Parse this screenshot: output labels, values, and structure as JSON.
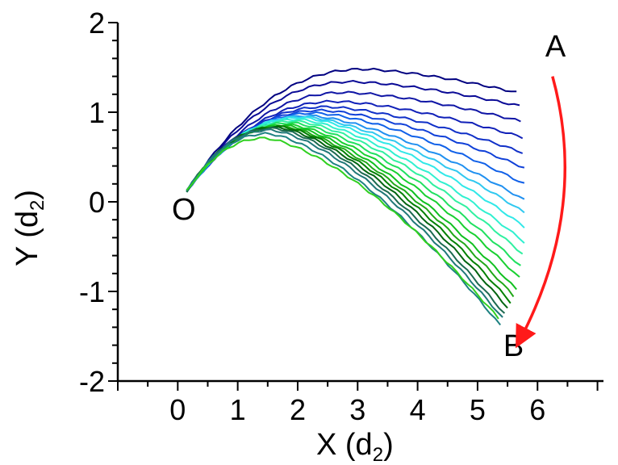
{
  "chart_data": {
    "type": "line",
    "xlabel": "X (d",
    "xlabel_sub": "2",
    "xlabel_close": ")",
    "ylabel": "Y (d",
    "ylabel_sub": "2",
    "ylabel_close": ")",
    "xlim": [
      -1,
      7.1
    ],
    "ylim": [
      -2,
      2
    ],
    "xticks": [
      0,
      1,
      2,
      3,
      4,
      5,
      6
    ],
    "yticks": [
      -2,
      -1,
      0,
      1,
      2
    ],
    "grid": false,
    "legend": "none",
    "origin": [
      0.15,
      0.12
    ],
    "annotations": [
      {
        "text": "O",
        "x": 0.1,
        "y": -0.2
      },
      {
        "text": "A",
        "x": 6.3,
        "y": 1.62
      },
      {
        "text": "B",
        "x": 5.6,
        "y": -1.72
      }
    ],
    "arrow": {
      "from": [
        6.25,
        1.4
      ],
      "to": [
        5.7,
        -1.55
      ],
      "color": "#ff1a1a"
    },
    "series": [
      {
        "color": "#000080",
        "end": [
          5.65,
          1.22
        ],
        "peak": [
          3.1,
          1.48
        ],
        "w": 0.42
      },
      {
        "color": "#0a0a96",
        "end": [
          5.7,
          1.07
        ],
        "peak": [
          2.9,
          1.34
        ],
        "w": 0.42
      },
      {
        "color": "#0f15a5",
        "end": [
          5.72,
          0.9
        ],
        "peak": [
          2.8,
          1.22
        ],
        "w": 0.42
      },
      {
        "color": "#1020b8",
        "end": [
          5.75,
          0.72
        ],
        "peak": [
          2.65,
          1.12
        ],
        "w": 0.42
      },
      {
        "color": "#1030c8",
        "end": [
          5.75,
          0.55
        ],
        "peak": [
          2.5,
          1.06
        ],
        "w": 0.42
      },
      {
        "color": "#1040d8",
        "end": [
          5.78,
          0.38
        ],
        "peak": [
          2.4,
          1.02
        ],
        "w": 0.42
      },
      {
        "color": "#1060e8",
        "end": [
          5.78,
          0.2
        ],
        "peak": [
          2.3,
          0.99
        ],
        "w": 0.42
      },
      {
        "color": "#2090f0",
        "end": [
          5.78,
          0.02
        ],
        "peak": [
          2.2,
          0.96
        ],
        "w": 0.42
      },
      {
        "color": "#30c8f0",
        "end": [
          5.78,
          -0.12
        ],
        "peak": [
          2.1,
          0.95
        ],
        "w": 0.42
      },
      {
        "color": "#30e8e8",
        "end": [
          5.78,
          -0.28
        ],
        "peak": [
          2.05,
          0.94
        ],
        "w": 0.42
      },
      {
        "color": "#30f0d0",
        "end": [
          5.78,
          -0.45
        ],
        "peak": [
          2.0,
          0.92
        ],
        "w": 0.42
      },
      {
        "color": "#30f0a0",
        "end": [
          5.75,
          -0.58
        ],
        "peak": [
          1.95,
          0.9
        ],
        "w": 0.42
      },
      {
        "color": "#20e060",
        "end": [
          5.72,
          -0.72
        ],
        "peak": [
          1.9,
          0.88
        ],
        "w": 0.42
      },
      {
        "color": "#18d030",
        "end": [
          5.7,
          -0.85
        ],
        "peak": [
          1.85,
          0.86
        ],
        "w": 0.42
      },
      {
        "color": "#10c020",
        "end": [
          5.65,
          -0.98
        ],
        "peak": [
          1.8,
          0.85
        ],
        "w": 0.42
      },
      {
        "color": "#20a818",
        "end": [
          5.6,
          -1.05
        ],
        "peak": [
          1.75,
          0.84
        ],
        "w": 0.42
      },
      {
        "color": "#008000",
        "end": [
          5.55,
          -1.12
        ],
        "peak": [
          1.7,
          0.84
        ],
        "w": 0.42
      },
      {
        "color": "#006410",
        "end": [
          5.5,
          -1.18
        ],
        "peak": [
          1.65,
          0.83
        ],
        "w": 0.42
      },
      {
        "color": "#1c6a50",
        "end": [
          5.45,
          -1.25
        ],
        "peak": [
          1.6,
          0.82
        ],
        "w": 0.42
      },
      {
        "color": "#207878",
        "end": [
          5.42,
          -1.3
        ],
        "peak": [
          1.55,
          0.8
        ],
        "w": 0.42
      },
      {
        "color": "#1e8282",
        "end": [
          5.38,
          -1.38
        ],
        "peak": [
          1.5,
          0.76
        ],
        "w": 0.42
      },
      {
        "color": "#30d020",
        "end": [
          5.35,
          -1.3
        ],
        "peak": [
          1.45,
          0.71
        ],
        "w": 0.42
      }
    ]
  }
}
